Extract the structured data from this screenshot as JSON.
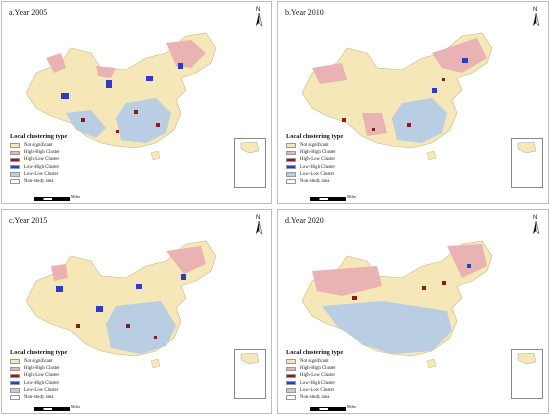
{
  "panels": [
    {
      "title": "a.Year 2005"
    },
    {
      "title": "b.Year 2010"
    },
    {
      "title": "c.Year 2015"
    },
    {
      "title": "d.Year 2020"
    }
  ],
  "north_label": "N",
  "legend": {
    "title": "Local clustering type",
    "items": [
      {
        "label": "Not significant",
        "color": "#f5e7b8"
      },
      {
        "label": "High-High Cluster",
        "color": "#eab3b3"
      },
      {
        "label": "High-Low Cluster",
        "color": "#8b1a1a"
      },
      {
        "label": "Low-High Cluster",
        "color": "#2b3cc8"
      },
      {
        "label": "Low-Low Cluster",
        "color": "#b9cde3"
      },
      {
        "label": "Non-study area",
        "color": "#ffffff"
      }
    ]
  },
  "scale_unit": "Miles"
}
